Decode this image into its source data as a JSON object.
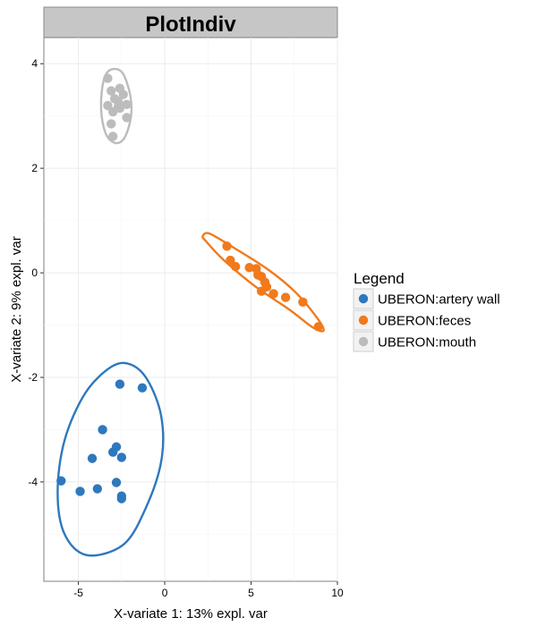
{
  "chart_data": {
    "type": "scatter",
    "title": "PlotIndiv",
    "xlabel": "X-variate 1: 13% expl. var",
    "ylabel": "X-variate 2: 9% expl. var",
    "xlim": [
      -7,
      10
    ],
    "ylim": [
      -5.9,
      4.5
    ],
    "xticks": [
      -5,
      0,
      5,
      10
    ],
    "yticks": [
      -4,
      -2,
      0,
      2,
      4
    ],
    "grid": true,
    "legend": {
      "title": "Legend",
      "placement": "right"
    },
    "series": [
      {
        "name": "UBERON:artery wall",
        "color": "#2E78BE",
        "points": [
          [
            -2.6,
            -2.13
          ],
          [
            -1.3,
            -2.2
          ],
          [
            -3.6,
            -3.0
          ],
          [
            -2.8,
            -3.33
          ],
          [
            -3.0,
            -3.43
          ],
          [
            -4.2,
            -3.55
          ],
          [
            -2.5,
            -3.53
          ],
          [
            -6.0,
            -3.98
          ],
          [
            -2.8,
            -4.01
          ],
          [
            -4.9,
            -4.18
          ],
          [
            -3.9,
            -4.13
          ],
          [
            -2.5,
            -4.27
          ],
          [
            -2.5,
            -4.32
          ]
        ],
        "ellipse_points": [
          [
            -2.0,
            -1.75
          ],
          [
            -1.0,
            -2.05
          ],
          [
            -0.2,
            -2.75
          ],
          [
            -0.2,
            -3.6
          ],
          [
            -1.1,
            -4.5
          ],
          [
            -2.4,
            -5.2
          ],
          [
            -4.5,
            -5.4
          ],
          [
            -5.8,
            -5.0
          ],
          [
            -6.2,
            -4.2
          ],
          [
            -5.8,
            -3.2
          ],
          [
            -4.6,
            -2.3
          ],
          [
            -3.1,
            -1.8
          ]
        ]
      },
      {
        "name": "UBERON:feces",
        "color": "#F07A1C",
        "points": [
          [
            3.6,
            0.51
          ],
          [
            3.8,
            0.24
          ],
          [
            4.1,
            0.12
          ],
          [
            4.9,
            0.1
          ],
          [
            5.3,
            0.08
          ],
          [
            5.4,
            -0.04
          ],
          [
            5.6,
            -0.07
          ],
          [
            5.8,
            -0.18
          ],
          [
            5.9,
            -0.27
          ],
          [
            5.6,
            -0.35
          ],
          [
            6.3,
            -0.4
          ],
          [
            7.0,
            -0.47
          ],
          [
            8.0,
            -0.56
          ],
          [
            8.9,
            -1.03
          ]
        ],
        "ellipse_points": [
          [
            2.2,
            0.7
          ],
          [
            2.6,
            0.75
          ],
          [
            4.0,
            0.48
          ],
          [
            6.0,
            0.06
          ],
          [
            7.6,
            -0.38
          ],
          [
            8.8,
            -0.85
          ],
          [
            9.2,
            -1.1
          ],
          [
            8.6,
            -1.05
          ],
          [
            7.2,
            -0.7
          ],
          [
            5.2,
            -0.25
          ],
          [
            3.4,
            0.25
          ],
          [
            2.4,
            0.6
          ]
        ]
      },
      {
        "name": "UBERON:mouth",
        "color": "#BCBCBC",
        "points": [
          [
            -3.3,
            3.72
          ],
          [
            -2.6,
            3.53
          ],
          [
            -3.1,
            3.48
          ],
          [
            -2.4,
            3.41
          ],
          [
            -2.9,
            3.33
          ],
          [
            -2.7,
            3.28
          ],
          [
            -2.2,
            3.22
          ],
          [
            -3.3,
            3.2
          ],
          [
            -2.7,
            3.17
          ],
          [
            -2.6,
            3.15
          ],
          [
            -3.0,
            3.08
          ],
          [
            -2.2,
            2.97
          ],
          [
            -3.1,
            2.85
          ],
          [
            -3.0,
            2.61
          ]
        ],
        "ellipse_points": [
          [
            -2.9,
            3.9
          ],
          [
            -2.4,
            3.8
          ],
          [
            -2.0,
            3.4
          ],
          [
            -1.95,
            3.0
          ],
          [
            -2.3,
            2.6
          ],
          [
            -2.8,
            2.48
          ],
          [
            -3.35,
            2.62
          ],
          [
            -3.65,
            3.0
          ],
          [
            -3.65,
            3.45
          ],
          [
            -3.4,
            3.8
          ]
        ]
      }
    ]
  }
}
